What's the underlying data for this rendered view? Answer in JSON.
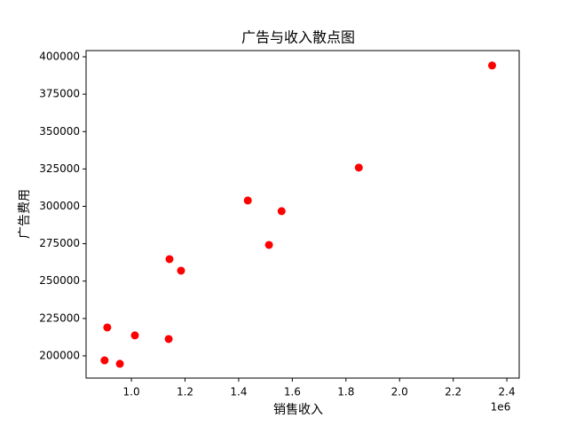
{
  "chart_data": {
    "type": "scatter",
    "title": "广告与收入散点图",
    "x_label": "销售收入",
    "y_label": "广告费用",
    "x_offset_label": "1e6",
    "color": "#ff0000",
    "x": [
      900000,
      910000,
      957000,
      1013000,
      1139000,
      1142000,
      1185000,
      1434000,
      1513000,
      1560000,
      1848000,
      2345000
    ],
    "values": [
      197000,
      219000,
      194700,
      213700,
      211300,
      264700,
      257000,
      303900,
      274200,
      296800,
      325900,
      394200
    ],
    "xlim": [
      831000,
      2446000
    ],
    "ylim": [
      185150,
      404160
    ],
    "xticks": [
      {
        "value": 1000000,
        "label": "1.0"
      },
      {
        "value": 1200000,
        "label": "1.2"
      },
      {
        "value": 1400000,
        "label": "1.4"
      },
      {
        "value": 1600000,
        "label": "1.6"
      },
      {
        "value": 1800000,
        "label": "1.8"
      },
      {
        "value": 2000000,
        "label": "2.0"
      },
      {
        "value": 2200000,
        "label": "2.2"
      },
      {
        "value": 2400000,
        "label": "2.4"
      }
    ],
    "yticks": [
      200000,
      225000,
      250000,
      275000,
      300000,
      325000,
      350000,
      375000,
      400000
    ],
    "grid": false
  }
}
